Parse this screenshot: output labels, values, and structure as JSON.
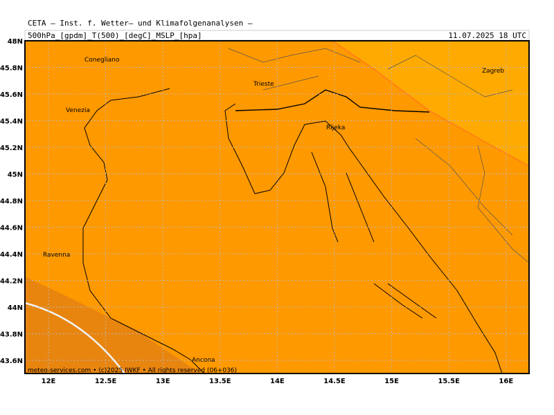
{
  "header": {
    "title": "CETA — Inst. f. Wetter— und Klimafolgenanalysen —",
    "subtitle": "500hPa_[gpdm]_T(500)_[degC]_MSLP_[hpa]",
    "valid_time": "11.07.2025 18 UTC"
  },
  "map": {
    "lat_labels": [
      "48N",
      "45.8N",
      "45.6N",
      "45.4N",
      "45.2N",
      "45N",
      "44.8N",
      "44.6N",
      "44.4N",
      "44.2N",
      "44N",
      "43.8N",
      "43.6N"
    ],
    "lon_labels": [
      "12E",
      "12.5E",
      "13E",
      "13.5E",
      "14E",
      "14.5E",
      "15E",
      "15.5E",
      "16E"
    ],
    "places": [
      "Conegliano",
      "Venezia",
      "Trieste",
      "Rijeka",
      "Zagreb",
      "Ravenna",
      "Ancona"
    ],
    "credit": "meteo-services.com • (c)2025 IWKF • All rights reserved (06+036)"
  }
}
